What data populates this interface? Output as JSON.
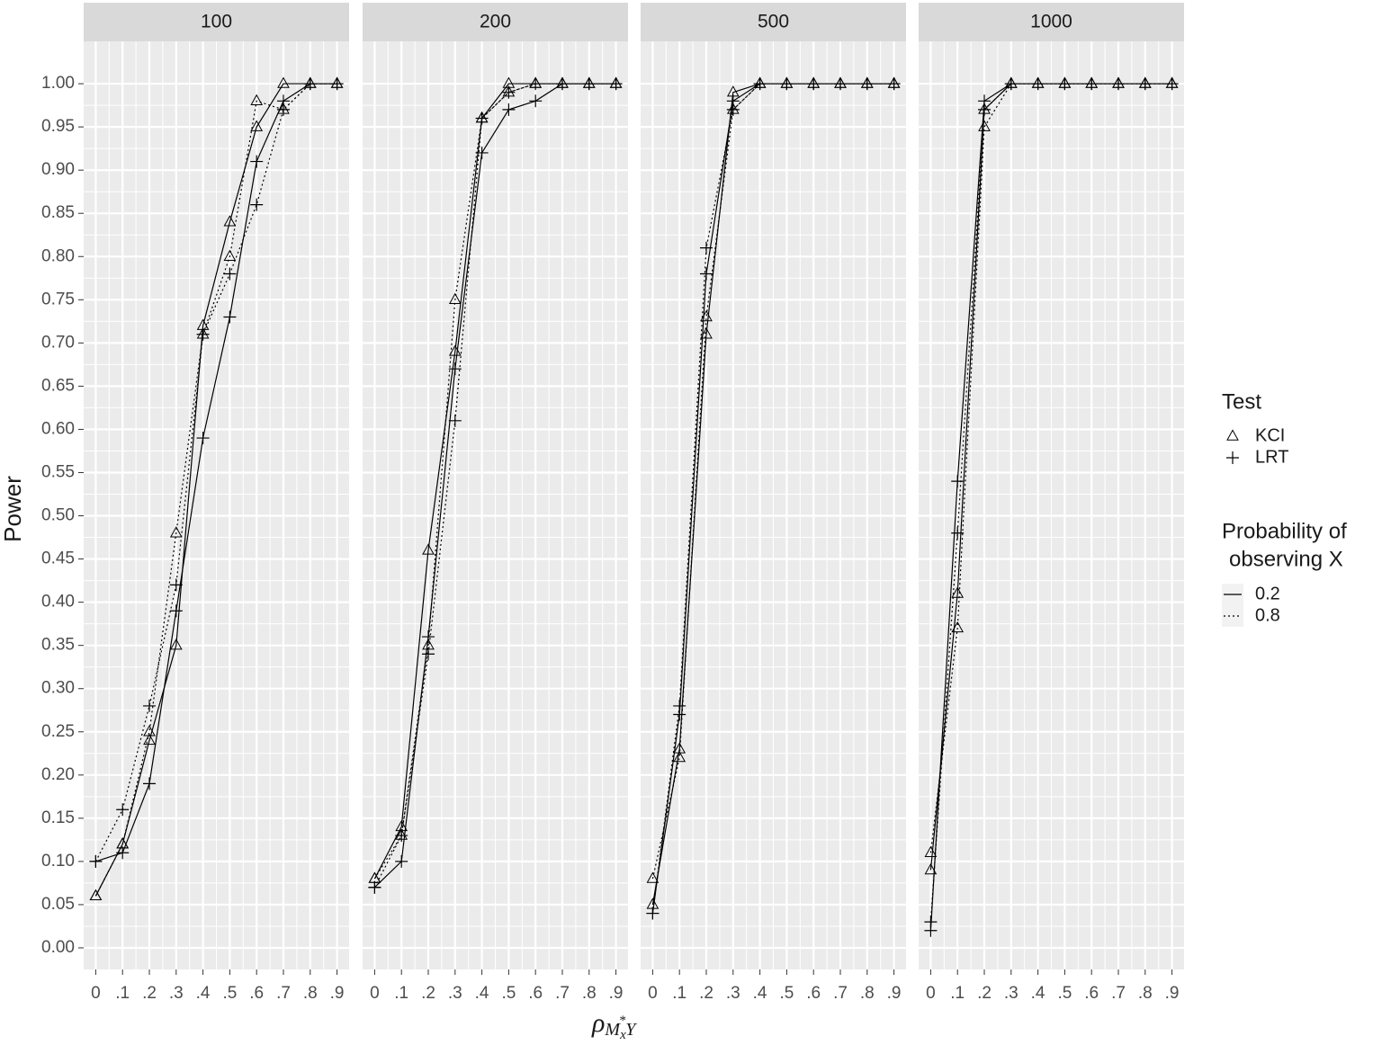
{
  "chart_data": {
    "type": "line",
    "y_label": "Power",
    "x_label": [
      "ρ",
      "M",
      "x",
      "*",
      "Y"
    ],
    "x": [
      0,
      0.1,
      0.2,
      0.3,
      0.4,
      0.5,
      0.6,
      0.7,
      0.8,
      0.9
    ],
    "xlim": [
      -0.045,
      0.945
    ],
    "xticks": [
      {
        "value": 0,
        "label": "0"
      },
      {
        "value": 0.1,
        "label": ".1"
      },
      {
        "value": 0.2,
        "label": ".2"
      },
      {
        "value": 0.3,
        "label": ".3"
      },
      {
        "value": 0.4,
        "label": ".4"
      },
      {
        "value": 0.5,
        "label": ".5"
      },
      {
        "value": 0.6,
        "label": ".6"
      },
      {
        "value": 0.7,
        "label": ".7"
      },
      {
        "value": 0.8,
        "label": ".8"
      },
      {
        "value": 0.9,
        "label": ".9"
      }
    ],
    "ylim": [
      -0.025,
      1.049
    ],
    "yticks": [
      {
        "value": 0,
        "label": "0.00"
      },
      {
        "value": 0.05,
        "label": "0.05"
      },
      {
        "value": 0.1,
        "label": "0.10"
      },
      {
        "value": 0.15,
        "label": "0.15"
      },
      {
        "value": 0.2,
        "label": "0.20"
      },
      {
        "value": 0.25,
        "label": "0.25"
      },
      {
        "value": 0.3,
        "label": "0.30"
      },
      {
        "value": 0.35,
        "label": "0.35"
      },
      {
        "value": 0.4,
        "label": "0.40"
      },
      {
        "value": 0.45,
        "label": "0.45"
      },
      {
        "value": 0.5,
        "label": "0.50"
      },
      {
        "value": 0.55,
        "label": "0.55"
      },
      {
        "value": 0.6,
        "label": "0.60"
      },
      {
        "value": 0.65,
        "label": "0.65"
      },
      {
        "value": 0.7,
        "label": "0.70"
      },
      {
        "value": 0.75,
        "label": "0.75"
      },
      {
        "value": 0.8,
        "label": "0.80"
      },
      {
        "value": 0.85,
        "label": "0.85"
      },
      {
        "value": 0.9,
        "label": "0.90"
      },
      {
        "value": 0.95,
        "label": "0.95"
      },
      {
        "value": 1,
        "label": "1.00"
      }
    ],
    "grid": true,
    "color": "#000000",
    "legend": {
      "shape_title": "Test",
      "shapes": [
        {
          "label": "KCI",
          "shape": "triangle"
        },
        {
          "label": "LRT",
          "shape": "plus"
        }
      ],
      "linetype_title": [
        "Probability of",
        "observing X"
      ],
      "linetypes": [
        {
          "label": "0.2",
          "linetype": "solid"
        },
        {
          "label": "0.8",
          "linetype": "dotted"
        }
      ]
    },
    "panels": [
      {
        "title": "100",
        "series": [
          {
            "test": "KCI",
            "probability": "0.2",
            "values": [
              0.06,
              0.12,
              0.24,
              0.35,
              0.72,
              0.84,
              0.95,
              1.0,
              1.0,
              1.0
            ]
          },
          {
            "test": "KCI",
            "probability": "0.8",
            "values": [
              0.06,
              0.12,
              0.25,
              0.48,
              0.71,
              0.8,
              0.98,
              0.97,
              1.0,
              1.0
            ]
          },
          {
            "test": "LRT",
            "probability": "0.2",
            "values": [
              0.1,
              0.11,
              0.19,
              0.39,
              0.59,
              0.73,
              0.91,
              0.98,
              1.0,
              1.0
            ]
          },
          {
            "test": "LRT",
            "probability": "0.8",
            "values": [
              0.1,
              0.16,
              0.28,
              0.42,
              0.71,
              0.78,
              0.86,
              0.97,
              1.0,
              1.0
            ]
          }
        ]
      },
      {
        "title": "200",
        "series": [
          {
            "test": "KCI",
            "probability": "0.2",
            "values": [
              0.08,
              0.14,
              0.46,
              0.69,
              0.96,
              1.0,
              1.0,
              1.0,
              1.0,
              1.0
            ]
          },
          {
            "test": "KCI",
            "probability": "0.8",
            "values": [
              0.08,
              0.13,
              0.35,
              0.75,
              0.96,
              0.99,
              1.0,
              1.0,
              1.0,
              1.0
            ]
          },
          {
            "test": "LRT",
            "probability": "0.2",
            "values": [
              0.07,
              0.1,
              0.36,
              0.67,
              0.92,
              0.97,
              0.98,
              1.0,
              1.0,
              1.0
            ]
          },
          {
            "test": "LRT",
            "probability": "0.8",
            "values": [
              0.07,
              0.13,
              0.34,
              0.61,
              0.96,
              0.99,
              1.0,
              1.0,
              1.0,
              1.0
            ]
          }
        ]
      },
      {
        "title": "500",
        "series": [
          {
            "test": "KCI",
            "probability": "0.2",
            "values": [
              0.05,
              0.23,
              0.71,
              0.99,
              1.0,
              1.0,
              1.0,
              1.0,
              1.0,
              1.0
            ]
          },
          {
            "test": "KCI",
            "probability": "0.8",
            "values": [
              0.08,
              0.22,
              0.73,
              0.97,
              1.0,
              1.0,
              1.0,
              1.0,
              1.0,
              1.0
            ]
          },
          {
            "test": "LRT",
            "probability": "0.2",
            "values": [
              0.04,
              0.27,
              0.78,
              0.98,
              1.0,
              1.0,
              1.0,
              1.0,
              1.0,
              1.0
            ]
          },
          {
            "test": "LRT",
            "probability": "0.8",
            "values": [
              0.04,
              0.28,
              0.81,
              0.97,
              1.0,
              1.0,
              1.0,
              1.0,
              1.0,
              1.0
            ]
          }
        ]
      },
      {
        "title": "1000",
        "series": [
          {
            "test": "KCI",
            "probability": "0.2",
            "values": [
              0.09,
              0.41,
              0.97,
              1.0,
              1.0,
              1.0,
              1.0,
              1.0,
              1.0,
              1.0
            ]
          },
          {
            "test": "KCI",
            "probability": "0.8",
            "values": [
              0.11,
              0.37,
              0.95,
              1.0,
              1.0,
              1.0,
              1.0,
              1.0,
              1.0,
              1.0
            ]
          },
          {
            "test": "LRT",
            "probability": "0.2",
            "values": [
              0.02,
              0.54,
              0.98,
              1.0,
              1.0,
              1.0,
              1.0,
              1.0,
              1.0,
              1.0
            ]
          },
          {
            "test": "LRT",
            "probability": "0.8",
            "values": [
              0.03,
              0.48,
              0.97,
              1.0,
              1.0,
              1.0,
              1.0,
              1.0,
              1.0,
              1.0
            ]
          }
        ]
      }
    ]
  }
}
